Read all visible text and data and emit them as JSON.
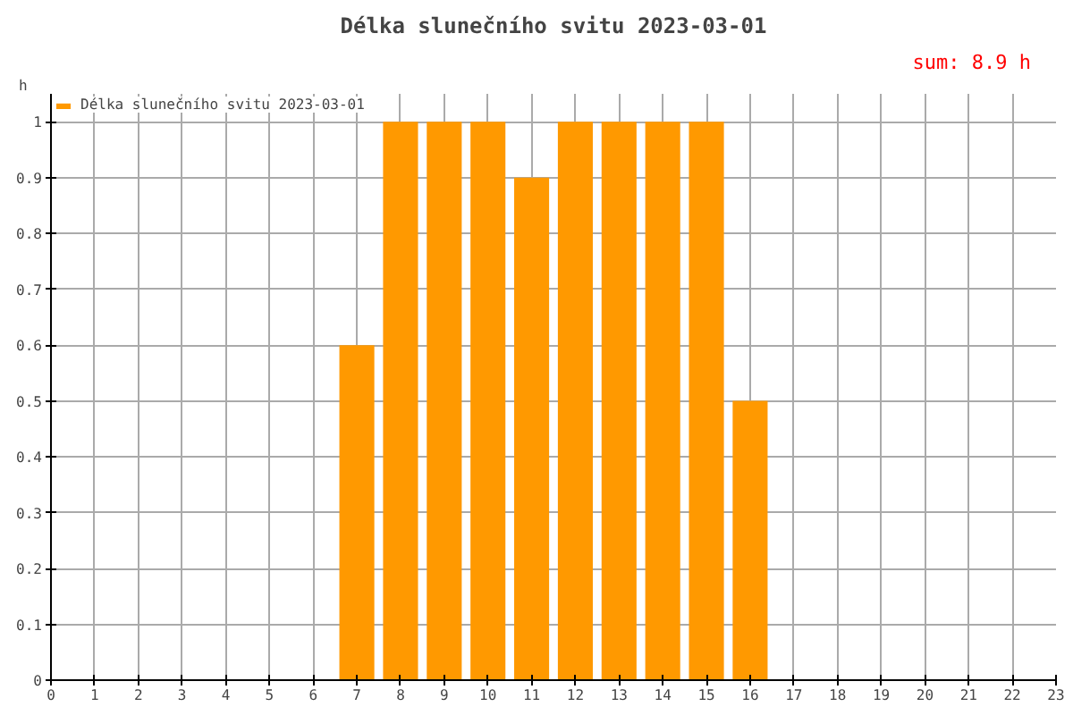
{
  "chart_data": {
    "type": "bar",
    "title": "Délka slunečního svitu 2023-03-01",
    "ylabel": "h",
    "annotations": [
      "sum: 8.9 h"
    ],
    "x": [
      7,
      8,
      9,
      10,
      11,
      12,
      13,
      14,
      15,
      16
    ],
    "series": [
      {
        "name": "Délka slunečního svitu 2023-03-01",
        "color": "#ff9900",
        "values": [
          0.6,
          1,
          1,
          1,
          0.9,
          1,
          1,
          1,
          1,
          0.5
        ]
      }
    ],
    "xlim": [
      0,
      23
    ],
    "xticks": [
      0,
      1,
      2,
      3,
      4,
      5,
      6,
      7,
      8,
      9,
      10,
      11,
      12,
      13,
      14,
      15,
      16,
      17,
      18,
      19,
      20,
      21,
      22,
      23
    ],
    "ylim": [
      0,
      1.05
    ],
    "yticks": [
      0,
      0.1,
      0.2,
      0.3,
      0.4,
      0.5,
      0.6,
      0.7,
      0.8,
      0.9,
      1
    ],
    "grid": true,
    "legend": "top left"
  }
}
